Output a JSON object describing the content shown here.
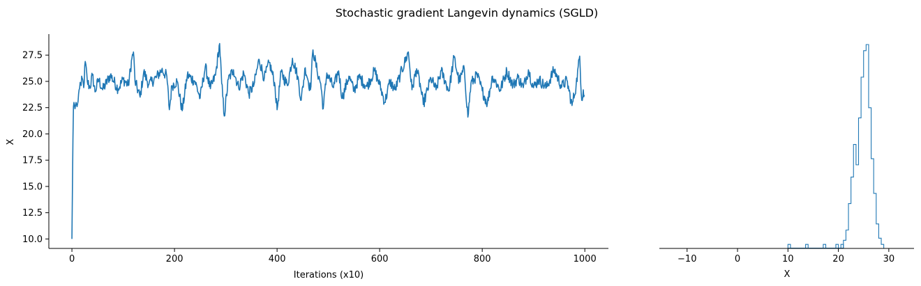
{
  "title": "Stochastic gradient Langevin dynamics (SGLD)",
  "colors": {
    "series": "#1f77b4",
    "axis": "#000000"
  },
  "chart_data": [
    {
      "type": "line",
      "xlabel": "Iterations (x10)",
      "ylabel": "X",
      "xlim": [
        -45,
        1046
      ],
      "ylim": [
        9.1,
        29.5
      ],
      "xticks": [
        "0",
        "200",
        "400",
        "600",
        "800",
        "1000"
      ],
      "yticks": [
        "10.0",
        "12.5",
        "15.0",
        "17.5",
        "20.0",
        "22.5",
        "25.0",
        "27.5"
      ],
      "grid": false,
      "spines": "left-bottom",
      "series": [
        {
          "knots": [
            [
              0,
              10.0
            ],
            [
              1,
              14.8
            ],
            [
              2,
              19.5
            ],
            [
              3,
              22.6
            ],
            [
              4,
              23.0
            ],
            [
              6,
              22.4
            ],
            [
              8,
              23.0
            ],
            [
              10,
              22.6
            ],
            [
              12,
              23.1
            ],
            [
              14,
              24.2
            ],
            [
              16,
              24.9
            ],
            [
              18,
              24.6
            ],
            [
              20,
              25.3
            ],
            [
              23,
              24.4
            ],
            [
              26,
              26.9
            ],
            [
              30,
              25.0
            ],
            [
              35,
              24.4
            ],
            [
              40,
              25.6
            ],
            [
              45,
              24.0
            ],
            [
              52,
              25.2
            ],
            [
              60,
              24.2
            ],
            [
              75,
              25.6
            ],
            [
              90,
              24.3
            ],
            [
              100,
              25.2
            ],
            [
              110,
              24.6
            ],
            [
              117,
              27.2
            ],
            [
              120,
              27.8
            ],
            [
              123,
              25.0
            ],
            [
              133,
              23.5
            ],
            [
              140,
              25.9
            ],
            [
              150,
              24.7
            ],
            [
              165,
              25.4
            ],
            [
              175,
              26.1
            ],
            [
              185,
              25.5
            ],
            [
              190,
              22.3
            ],
            [
              195,
              24.6
            ],
            [
              205,
              25.0
            ],
            [
              215,
              22.2
            ],
            [
              225,
              25.6
            ],
            [
              240,
              25.0
            ],
            [
              250,
              23.4
            ],
            [
              260,
              26.4
            ],
            [
              270,
              24.3
            ],
            [
              280,
              25.6
            ],
            [
              288,
              28.6
            ],
            [
              292,
              24.8
            ],
            [
              297,
              21.7
            ],
            [
              305,
              25.2
            ],
            [
              315,
              26.1
            ],
            [
              325,
              24.4
            ],
            [
              335,
              25.8
            ],
            [
              345,
              23.8
            ],
            [
              355,
              24.7
            ],
            [
              365,
              27.1
            ],
            [
              375,
              25.3
            ],
            [
              385,
              26.8
            ],
            [
              395,
              24.9
            ],
            [
              400,
              22.3
            ],
            [
              408,
              25.9
            ],
            [
              420,
              24.6
            ],
            [
              430,
              27.2
            ],
            [
              440,
              25.5
            ],
            [
              447,
              23.2
            ],
            [
              455,
              26.3
            ],
            [
              465,
              24.2
            ],
            [
              470,
              28.0
            ],
            [
              478,
              26.0
            ],
            [
              485,
              24.8
            ],
            [
              490,
              22.4
            ],
            [
              497,
              25.8
            ],
            [
              510,
              24.4
            ],
            [
              520,
              26.0
            ],
            [
              527,
              23.4
            ],
            [
              540,
              25.5
            ],
            [
              550,
              24.1
            ],
            [
              560,
              25.4
            ],
            [
              575,
              24.5
            ],
            [
              590,
              26.0
            ],
            [
              600,
              24.7
            ],
            [
              610,
              23.0
            ],
            [
              620,
              25.0
            ],
            [
              630,
              24.2
            ],
            [
              640,
              25.6
            ],
            [
              656,
              27.8
            ],
            [
              663,
              24.2
            ],
            [
              672,
              26.2
            ],
            [
              680,
              24.4
            ],
            [
              685,
              22.8
            ],
            [
              700,
              25.3
            ],
            [
              710,
              24.2
            ],
            [
              720,
              26.0
            ],
            [
              735,
              24.1
            ],
            [
              745,
              27.3
            ],
            [
              755,
              25.0
            ],
            [
              765,
              26.2
            ],
            [
              772,
              21.6
            ],
            [
              778,
              24.8
            ],
            [
              790,
              25.6
            ],
            [
              800,
              24.1
            ],
            [
              810,
              22.9
            ],
            [
              820,
              25.5
            ],
            [
              835,
              24.2
            ],
            [
              848,
              26.0
            ],
            [
              860,
              24.6
            ],
            [
              870,
              25.4
            ],
            [
              880,
              24.4
            ],
            [
              890,
              26.1
            ],
            [
              900,
              24.4
            ],
            [
              910,
              25.2
            ],
            [
              925,
              24.4
            ],
            [
              940,
              26.1
            ],
            [
              955,
              24.5
            ],
            [
              965,
              25.1
            ],
            [
              975,
              22.7
            ],
            [
              983,
              24.6
            ],
            [
              990,
              27.4
            ],
            [
              994,
              23.2
            ],
            [
              997,
              24.2
            ],
            [
              999,
              23.7
            ]
          ]
        }
      ]
    },
    {
      "type": "histogram",
      "xlabel": "X",
      "ylabel": "",
      "xlim": [
        -15.5,
        35.0
      ],
      "ylim": [
        0,
        1.0
      ],
      "xticks": [
        "−10",
        "0",
        "10",
        "20",
        "30"
      ],
      "grid": false,
      "spines": "bottom",
      "histtype": "step",
      "bin_width": 0.5,
      "bins": [
        [
          10.0,
          0.02
        ],
        [
          13.5,
          0.02
        ],
        [
          17.0,
          0.02
        ],
        [
          19.5,
          0.02
        ],
        [
          20.5,
          0.02
        ],
        [
          21.0,
          0.04
        ],
        [
          21.5,
          0.09
        ],
        [
          22.0,
          0.22
        ],
        [
          22.5,
          0.35
        ],
        [
          23.0,
          0.51
        ],
        [
          23.5,
          0.41
        ],
        [
          24.0,
          0.64
        ],
        [
          24.5,
          0.84
        ],
        [
          25.0,
          0.97
        ],
        [
          25.5,
          1.0
        ],
        [
          26.0,
          0.69
        ],
        [
          26.5,
          0.44
        ],
        [
          27.0,
          0.27
        ],
        [
          27.5,
          0.12
        ],
        [
          28.0,
          0.05
        ],
        [
          28.5,
          0.02
        ]
      ]
    }
  ]
}
